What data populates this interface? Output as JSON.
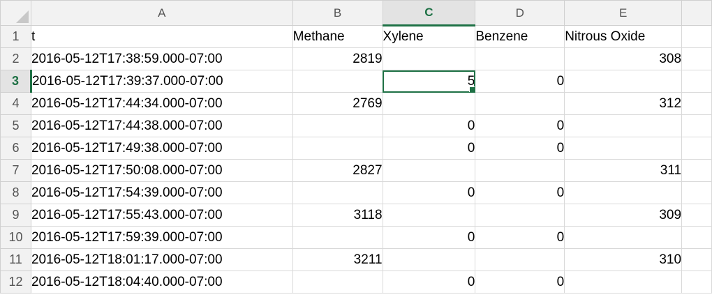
{
  "columns": [
    "A",
    "B",
    "C",
    "D",
    "E"
  ],
  "selected": {
    "row": "3",
    "column": "C"
  },
  "header_row": {
    "num": "1",
    "cells": [
      "t",
      "Methane",
      "Xylene",
      "Benzene",
      "Nitrous Oxide"
    ]
  },
  "rows": [
    {
      "num": "2",
      "t": "2016-05-12T17:38:59.000-07:00",
      "methane": "2819",
      "xylene": "",
      "benzene": "",
      "nitrous_oxide": "308"
    },
    {
      "num": "3",
      "t": "2016-05-12T17:39:37.000-07:00",
      "methane": "",
      "xylene": "5",
      "benzene": "0",
      "nitrous_oxide": ""
    },
    {
      "num": "4",
      "t": "2016-05-12T17:44:34.000-07:00",
      "methane": "2769",
      "xylene": "",
      "benzene": "",
      "nitrous_oxide": "312"
    },
    {
      "num": "5",
      "t": "2016-05-12T17:44:38.000-07:00",
      "methane": "",
      "xylene": "0",
      "benzene": "0",
      "nitrous_oxide": ""
    },
    {
      "num": "6",
      "t": "2016-05-12T17:49:38.000-07:00",
      "methane": "",
      "xylene": "0",
      "benzene": "0",
      "nitrous_oxide": ""
    },
    {
      "num": "7",
      "t": "2016-05-12T17:50:08.000-07:00",
      "methane": "2827",
      "xylene": "",
      "benzene": "",
      "nitrous_oxide": "311"
    },
    {
      "num": "8",
      "t": "2016-05-12T17:54:39.000-07:00",
      "methane": "",
      "xylene": "0",
      "benzene": "0",
      "nitrous_oxide": ""
    },
    {
      "num": "9",
      "t": "2016-05-12T17:55:43.000-07:00",
      "methane": "3118",
      "xylene": "",
      "benzene": "",
      "nitrous_oxide": "309"
    },
    {
      "num": "10",
      "t": "2016-05-12T17:59:39.000-07:00",
      "methane": "",
      "xylene": "0",
      "benzene": "0",
      "nitrous_oxide": ""
    },
    {
      "num": "11",
      "t": "2016-05-12T18:01:17.000-07:00",
      "methane": "3211",
      "xylene": "",
      "benzene": "",
      "nitrous_oxide": "310"
    },
    {
      "num": "12",
      "t": "2016-05-12T18:04:40.000-07:00",
      "methane": "",
      "xylene": "0",
      "benzene": "0",
      "nitrous_oxide": ""
    }
  ]
}
